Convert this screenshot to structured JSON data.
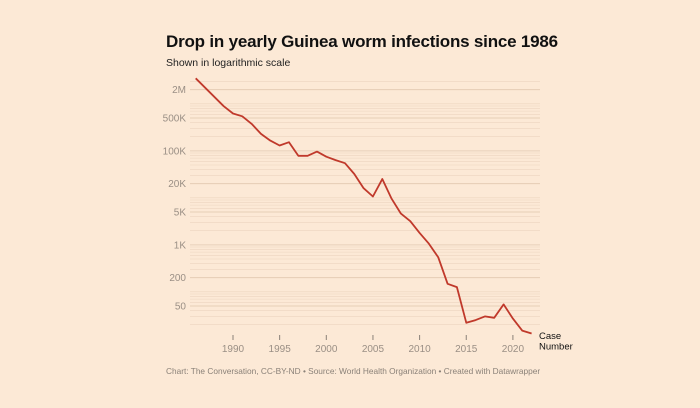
{
  "chart_data": {
    "type": "line",
    "title": "Drop in yearly Guinea worm infections since 1986",
    "subtitle": "Shown in logarithmic scale",
    "y_scale": "log",
    "ylim": [
      10,
      3500000
    ],
    "y_ticks": [
      {
        "value": 2000000,
        "label": "2M"
      },
      {
        "value": 500000,
        "label": "500K"
      },
      {
        "value": 100000,
        "label": "100K"
      },
      {
        "value": 20000,
        "label": "20K"
      },
      {
        "value": 5000,
        "label": "5K"
      },
      {
        "value": 1000,
        "label": "1K"
      },
      {
        "value": 200,
        "label": "200"
      },
      {
        "value": 50,
        "label": "50"
      }
    ],
    "x_ticks": [
      1990,
      1995,
      2000,
      2005,
      2010,
      2015,
      2020
    ],
    "grid": true,
    "series": [
      {
        "name": "Case Number",
        "color": "#c0392b",
        "x": [
          1986,
          1989,
          1990,
          1991,
          1992,
          1993,
          1994,
          1995,
          1996,
          1997,
          1998,
          1999,
          2000,
          2001,
          2002,
          2003,
          2004,
          2005,
          2006,
          2007,
          2008,
          2009,
          2010,
          2011,
          2012,
          2013,
          2014,
          2015,
          2016,
          2017,
          2018,
          2019,
          2020,
          2021,
          2022
        ],
        "y": [
          3500000,
          892055,
          623579,
          543585,
          374202,
          229773,
          164977,
          129852,
          152814,
          78557,
          78375,
          96293,
          75223,
          63717,
          54638,
          32193,
          16026,
          10674,
          25217,
          9585,
          4619,
          3190,
          1797,
          1058,
          542,
          148,
          126,
          22,
          25,
          30,
          28,
          54,
          27,
          15,
          13
        ]
      }
    ],
    "series_label": [
      "Case",
      "Number"
    ],
    "background": "#fce9d6"
  },
  "footer": "Chart: The Conversation, CC-BY-ND • Source: World Health Organization • Created with Datawrapper"
}
